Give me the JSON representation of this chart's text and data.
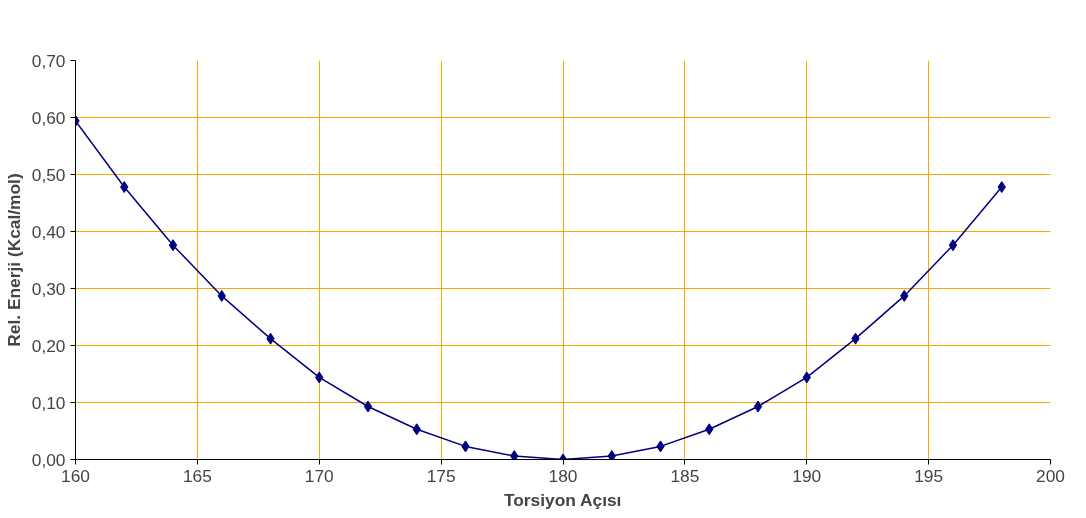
{
  "chart_data": {
    "type": "line",
    "xlabel": "Torsiyon Açısı",
    "ylabel": "Rel. Enerji (Kcal/mol)",
    "x": [
      160,
      162,
      164,
      166,
      168,
      170,
      172,
      174,
      176,
      178,
      180,
      182,
      184,
      186,
      188,
      190,
      192,
      194,
      196,
      198
    ],
    "series": [
      {
        "color": "#000080",
        "values": [
          0.594,
          0.478,
          0.376,
          0.287,
          0.212,
          0.144,
          0.093,
          0.053,
          0.023,
          0.006,
          0.0,
          0.006,
          0.023,
          0.053,
          0.093,
          0.144,
          0.212,
          0.287,
          0.376,
          0.478
        ]
      }
    ],
    "xlim": [
      160,
      200
    ],
    "xticks": [
      160,
      165,
      170,
      175,
      180,
      185,
      190,
      195,
      200
    ],
    "ylim": [
      0,
      0.7
    ],
    "yticks": [
      {
        "value": 0,
        "label": "0,00"
      },
      {
        "value": 0.1,
        "label": "0,10"
      },
      {
        "value": 0.2,
        "label": "0,20"
      },
      {
        "value": 0.3,
        "label": "0,30"
      },
      {
        "value": 0.4,
        "label": "0,40"
      },
      {
        "value": 0.5,
        "label": "0,50"
      },
      {
        "value": 0.6,
        "label": "0,60"
      },
      {
        "value": 0.7,
        "label": "0,70"
      }
    ],
    "grid": true,
    "marker": "diamond",
    "line_style": "solid"
  }
}
